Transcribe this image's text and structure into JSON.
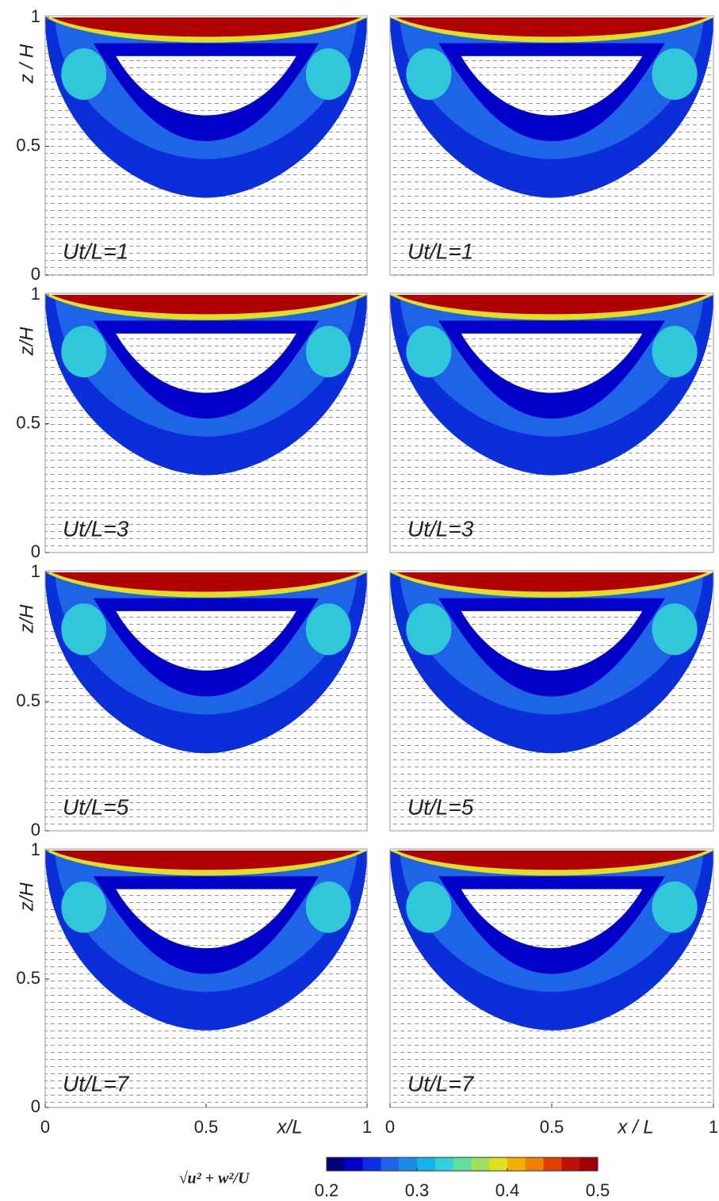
{
  "chart_data": [
    {
      "type": "contour",
      "annotation": "Ut/L=1",
      "ylabel": "z / H",
      "xlim": [
        0,
        1
      ],
      "ylim": [
        0,
        1
      ],
      "yticks": [
        0,
        0.5,
        1
      ]
    },
    {
      "type": "contour",
      "annotation": "Ut/L=1",
      "xlim": [
        0,
        1
      ],
      "ylim": [
        0,
        1
      ]
    },
    {
      "type": "contour",
      "annotation": "Ut/L=3",
      "ylabel": "z/H",
      "xlim": [
        0,
        1
      ],
      "ylim": [
        0,
        1
      ],
      "yticks": [
        0,
        0.5,
        1
      ]
    },
    {
      "type": "contour",
      "annotation": "Ut/L=3",
      "xlim": [
        0,
        1
      ],
      "ylim": [
        0,
        1
      ]
    },
    {
      "type": "contour",
      "annotation": "Ut/L=5",
      "ylabel": "z/H",
      "xlim": [
        0,
        1
      ],
      "ylim": [
        0,
        1
      ],
      "yticks": [
        0,
        0.5,
        1
      ]
    },
    {
      "type": "contour",
      "annotation": "Ut/L=5",
      "xlim": [
        0,
        1
      ],
      "ylim": [
        0,
        1
      ]
    },
    {
      "type": "contour",
      "annotation": "Ut/L=7",
      "ylabel": "z/H",
      "xlabel": "x/L",
      "xlim": [
        0,
        1
      ],
      "ylim": [
        0,
        1
      ],
      "xticks": [
        0,
        0.5,
        1
      ],
      "yticks": [
        0,
        0.5,
        1
      ]
    },
    {
      "type": "contour",
      "annotation": "Ut/L=7",
      "xlabel": "x / L",
      "xlim": [
        0,
        1
      ],
      "ylim": [
        0,
        1
      ],
      "xticks": [
        0,
        0.5,
        1
      ]
    },
    {
      "type": "colorbar",
      "label": "√u² + w²/U",
      "clim": [
        0.2,
        0.5
      ],
      "cticks": [
        0.2,
        0.3,
        0.4,
        0.5
      ],
      "colors": [
        "#00007f",
        "#0000c8",
        "#0a2ee6",
        "#1e64e6",
        "#1a8ce6",
        "#14b4e6",
        "#30d0e0",
        "#60e0a0",
        "#a0e060",
        "#e0e020",
        "#f0b000",
        "#f08000",
        "#e04000",
        "#c01000",
        "#a00000"
      ]
    }
  ]
}
